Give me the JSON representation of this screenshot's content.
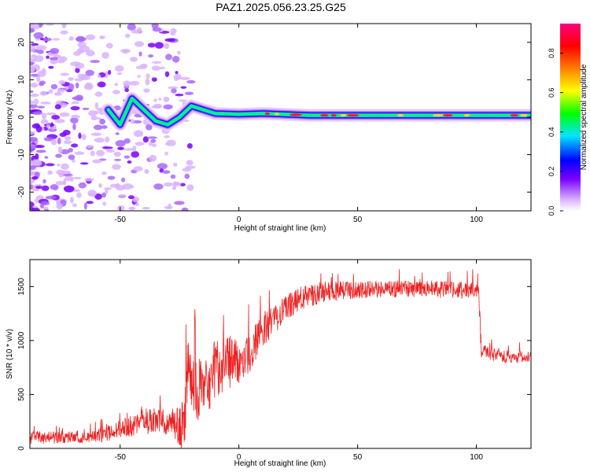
{
  "figure": {
    "title": "PAZ1.2025.056.23.25.G25"
  },
  "chart_data": [
    {
      "type": "heatmap",
      "xlabel": "Height of straight line (km)",
      "ylabel": "Frequency (Hz)",
      "xlim": [
        -88,
        123
      ],
      "ylim": [
        -25,
        25
      ],
      "xticks": [
        -50,
        0,
        50,
        100
      ],
      "yticks": [
        -20,
        -10,
        0,
        10,
        20
      ],
      "colorbar": {
        "label": "Normalized spectral amplitude",
        "range": [
          0,
          0.95
        ],
        "ticks": [
          "0.0",
          "0.2",
          "0.4",
          "0.6",
          "0.8"
        ],
        "colormap": [
          "#ffffff",
          "#d9b3ff",
          "#7a00ff",
          "#0000ff",
          "#00e5ff",
          "#00ff00",
          "#ffff00",
          "#ff7f00",
          "#ff0000",
          "#ff0080"
        ]
      },
      "ridge": {
        "points": [
          [
            -55,
            2
          ],
          [
            -50,
            -2
          ],
          [
            -45,
            5
          ],
          [
            -40,
            2
          ],
          [
            -35,
            -1
          ],
          [
            -30,
            -2
          ],
          [
            -25,
            0
          ],
          [
            -20,
            3
          ],
          [
            -15,
            2
          ],
          [
            -10,
            1
          ],
          [
            0,
            0.8
          ],
          [
            10,
            1
          ],
          [
            30,
            0.5
          ],
          [
            50,
            0.5
          ],
          [
            80,
            0.5
          ],
          [
            100,
            0.5
          ],
          [
            123,
            0.5
          ]
        ],
        "peak_height_range": [
          0,
          123
        ],
        "peak_amplitude": 0.9
      },
      "grid": false
    },
    {
      "type": "line",
      "xlabel": "Height of straight line (km)",
      "ylabel": "SNR (10 * v/v)",
      "xlim": [
        -88,
        123
      ],
      "ylim": [
        0,
        1750
      ],
      "xticks": [
        -50,
        0,
        50,
        100
      ],
      "yticks": [
        0,
        500,
        1000,
        1500
      ],
      "color": "#ee2222",
      "envelope": [
        [
          -88,
          100
        ],
        [
          -60,
          110
        ],
        [
          -40,
          250
        ],
        [
          -28,
          250
        ],
        [
          -23,
          180
        ],
        [
          -22,
          700
        ],
        [
          -15,
          500
        ],
        [
          -8,
          800
        ],
        [
          0,
          800
        ],
        [
          5,
          900
        ],
        [
          10,
          1100
        ],
        [
          20,
          1300
        ],
        [
          25,
          1380
        ],
        [
          35,
          1450
        ],
        [
          50,
          1470
        ],
        [
          70,
          1480
        ],
        [
          90,
          1470
        ],
        [
          101,
          1460
        ],
        [
          102,
          900
        ],
        [
          110,
          850
        ],
        [
          123,
          850
        ]
      ],
      "noise": [
        [
          -88,
          60
        ],
        [
          -60,
          60
        ],
        [
          -40,
          120
        ],
        [
          -28,
          120
        ],
        [
          -22,
          300
        ],
        [
          -8,
          300
        ],
        [
          0,
          200
        ],
        [
          20,
          120
        ],
        [
          50,
          80
        ],
        [
          101,
          80
        ],
        [
          102,
          60
        ],
        [
          123,
          60
        ]
      ],
      "grid": false
    }
  ]
}
